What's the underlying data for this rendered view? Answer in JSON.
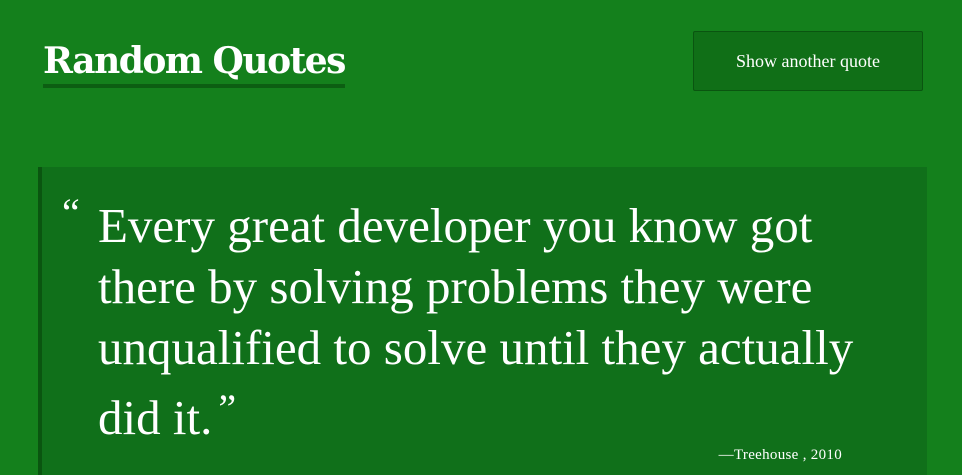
{
  "header": {
    "title": "Random Quotes",
    "button_label": "Show another quote"
  },
  "quote": {
    "open_mark": "“",
    "text": "Every great developer you know got there by solving problems they were unqualified to solve until they actually did it.",
    "close_mark": "”",
    "dash": "—",
    "source": "Treehouse",
    "separator": " , ",
    "year": "2010"
  },
  "colors": {
    "background": "#14801c",
    "quote_box": "#10701a",
    "accent_dark": "#0a5510"
  }
}
